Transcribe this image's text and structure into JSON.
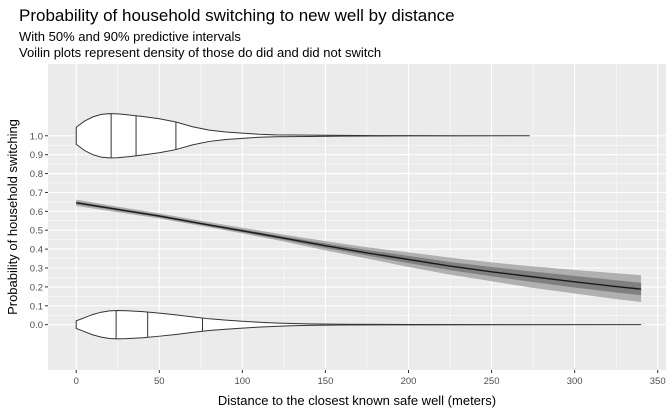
{
  "chart_data": {
    "type": "line",
    "title": "Probability of household switching to new well by distance",
    "subtitle_lines": [
      "With 50% and 90% predictive intervals",
      "Voilin plots represent density of those do did and did not switch"
    ],
    "xlabel": "Distance to the closest known safe well (meters)",
    "ylabel": "Probability of household switching",
    "xlim": [
      -17,
      355
    ],
    "ylim": [
      -0.24,
      1.38
    ],
    "x_ticks": [
      0,
      50,
      100,
      150,
      200,
      250,
      300,
      350
    ],
    "y_ticks": [
      0.0,
      0.1,
      0.2,
      0.3,
      0.4,
      0.5,
      0.6,
      0.7,
      0.8,
      0.9,
      1.0
    ],
    "y_tick_labels": [
      "0.0",
      "0.1",
      "0.2",
      "0.3",
      "0.4",
      "0.5",
      "0.6",
      "0.7",
      "0.8",
      "0.9",
      "1.0"
    ],
    "grid": true,
    "series": [
      {
        "kind": "fit",
        "x": [
          0,
          25,
          50,
          75,
          100,
          125,
          150,
          175,
          200,
          225,
          250,
          275,
          300,
          325,
          340
        ],
        "y": [
          0.645,
          0.61,
          0.575,
          0.535,
          0.497,
          0.458,
          0.418,
          0.38,
          0.345,
          0.31,
          0.28,
          0.253,
          0.227,
          0.202,
          0.188
        ],
        "interval90_lower": [
          0.628,
          0.595,
          0.562,
          0.523,
          0.483,
          0.44,
          0.393,
          0.35,
          0.305,
          0.265,
          0.23,
          0.195,
          0.165,
          0.135,
          0.12
        ],
        "interval90_upper": [
          0.662,
          0.625,
          0.589,
          0.55,
          0.513,
          0.477,
          0.442,
          0.41,
          0.383,
          0.355,
          0.33,
          0.308,
          0.29,
          0.272,
          0.262
        ],
        "interval50_lower": [
          0.638,
          0.604,
          0.569,
          0.529,
          0.49,
          0.449,
          0.406,
          0.366,
          0.326,
          0.289,
          0.256,
          0.225,
          0.197,
          0.17,
          0.156
        ],
        "interval50_upper": [
          0.652,
          0.616,
          0.581,
          0.541,
          0.504,
          0.467,
          0.43,
          0.395,
          0.364,
          0.332,
          0.305,
          0.281,
          0.258,
          0.235,
          0.222
        ]
      },
      {
        "kind": "violin",
        "center_y": 1.0,
        "x": [
          0,
          5,
          10,
          15,
          20,
          25,
          30,
          40,
          50,
          60,
          70,
          80,
          90,
          100,
          110,
          120,
          140,
          160,
          180,
          200,
          230,
          273
        ],
        "half_width": [
          0.045,
          0.078,
          0.1,
          0.113,
          0.117,
          0.116,
          0.112,
          0.102,
          0.09,
          0.073,
          0.048,
          0.03,
          0.02,
          0.014,
          0.008,
          0.005,
          0.0035,
          0.002,
          0.001,
          0.0005,
          0.0003,
          0.0
        ],
        "quantile_lines_x": [
          21,
          36,
          60
        ]
      },
      {
        "kind": "violin",
        "center_y": 0.0,
        "x": [
          0,
          5,
          10,
          15,
          20,
          25,
          30,
          40,
          50,
          60,
          70,
          80,
          90,
          100,
          110,
          120,
          130,
          140,
          160,
          200,
          260,
          340
        ],
        "half_width": [
          0.02,
          0.037,
          0.054,
          0.066,
          0.073,
          0.075,
          0.074,
          0.069,
          0.061,
          0.052,
          0.041,
          0.031,
          0.024,
          0.018,
          0.013,
          0.009,
          0.006,
          0.004,
          0.002,
          0.0008,
          0.0003,
          0.0
        ],
        "quantile_lines_x": [
          24,
          43,
          76
        ]
      }
    ]
  }
}
